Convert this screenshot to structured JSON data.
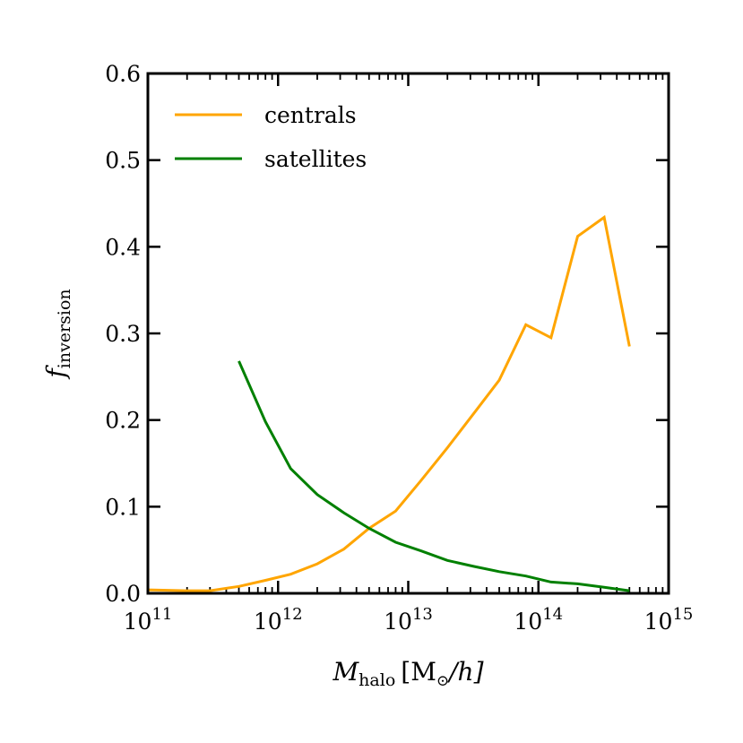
{
  "chart_data": {
    "type": "line",
    "title": "",
    "xscale": "log",
    "xlim": [
      100000000000.0,
      1000000000000000.0
    ],
    "ylim": [
      0.0,
      0.6
    ],
    "yticks": [
      0.0,
      0.1,
      0.2,
      0.3,
      0.4,
      0.5,
      0.6
    ],
    "ytick_labels": [
      "0.0",
      "0.1",
      "0.2",
      "0.3",
      "0.4",
      "0.5",
      "0.6"
    ],
    "xticks": [
      {
        "value": 100000000000.0,
        "base": "10",
        "exp": "11"
      },
      {
        "value": 1000000000000.0,
        "base": "10",
        "exp": "12"
      },
      {
        "value": 10000000000000.0,
        "base": "10",
        "exp": "13"
      },
      {
        "value": 100000000000000.0,
        "base": "10",
        "exp": "14"
      },
      {
        "value": 1000000000000000.0,
        "base": "10",
        "exp": "15"
      }
    ],
    "xlabel": {
      "main": "M",
      "sub": "halo",
      "units": "[M",
      "units_sub": "⊙",
      "units_tail": "/h]"
    },
    "ylabel": {
      "main": "f",
      "sub": "inversion"
    },
    "legend_position": "upper-left",
    "series": [
      {
        "name": "centrals",
        "color": "#FFA500",
        "x": [
          100000000000.0,
          200000000000.0,
          300000000000.0,
          500000000000.0,
          800000000000.0,
          1250000000000.0,
          2000000000000.0,
          3200000000000.0,
          5000000000000.0,
          8000000000000.0,
          12500000000000.0,
          20000000000000.0,
          32000000000000.0,
          50000000000000.0,
          80000000000000.0,
          125000000000000.0,
          200000000000000.0,
          320000000000000.0,
          500000000000000.0
        ],
        "y": [
          0.004,
          0.003,
          0.003,
          0.008,
          0.015,
          0.022,
          0.034,
          0.051,
          0.075,
          0.095,
          0.13,
          0.168,
          0.208,
          0.246,
          0.31,
          0.295,
          0.412,
          0.434,
          0.285
        ]
      },
      {
        "name": "satellites",
        "color": "#008000",
        "x": [
          500000000000.0,
          800000000000.0,
          1250000000000.0,
          2000000000000.0,
          3200000000000.0,
          5000000000000.0,
          8000000000000.0,
          12500000000000.0,
          20000000000000.0,
          32000000000000.0,
          50000000000000.0,
          80000000000000.0,
          125000000000000.0,
          200000000000000.0,
          320000000000000.0,
          500000000000000.0
        ],
        "y": [
          0.268,
          0.198,
          0.144,
          0.114,
          0.093,
          0.075,
          0.059,
          0.049,
          0.038,
          0.031,
          0.025,
          0.02,
          0.013,
          0.011,
          0.007,
          0.003
        ]
      }
    ]
  }
}
